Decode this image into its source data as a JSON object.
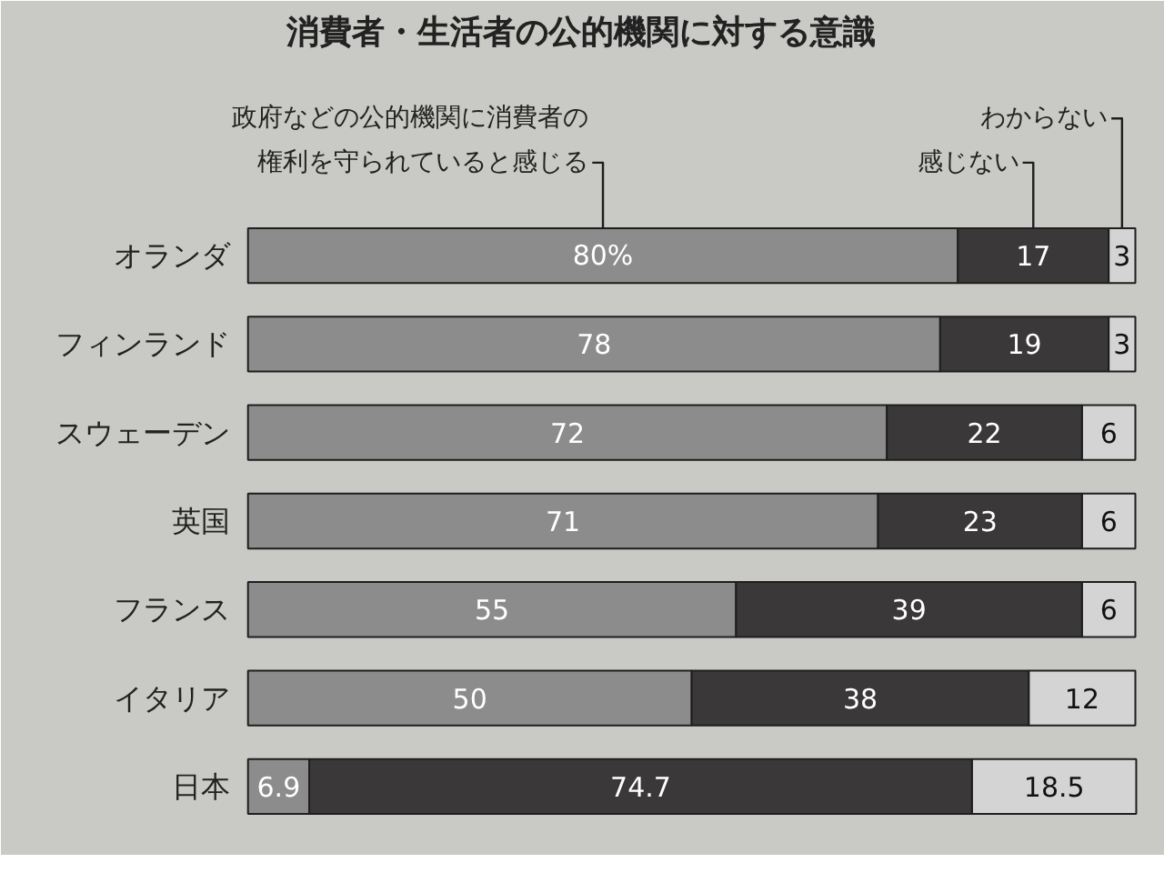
{
  "chart_data": {
    "type": "bar",
    "orientation": "horizontal",
    "stacked": true,
    "title": "消費者・生活者の公的機関に対する意識",
    "categories": [
      "オランダ",
      "フィンランド",
      "スウェーデン",
      "英国",
      "フランス",
      "イタリア",
      "日本"
    ],
    "series": [
      {
        "name": "政府などの公的機関に消費者の権利を守られていると感じる",
        "color": "#8c8c8c",
        "values": [
          80,
          78,
          72,
          71,
          55,
          50,
          6.9
        ],
        "value_labels": [
          "80%",
          "78",
          "72",
          "71",
          "55",
          "50",
          "6.9"
        ]
      },
      {
        "name": "感じない",
        "color": "#3a3838",
        "values": [
          17,
          19,
          22,
          23,
          39,
          38,
          74.7
        ],
        "value_labels": [
          "17",
          "19",
          "22",
          "23",
          "39",
          "38",
          "74.7"
        ]
      },
      {
        "name": "わからない",
        "color": "#d4d4d4",
        "values": [
          3,
          3,
          6,
          6,
          6,
          12,
          18.5
        ],
        "value_labels": [
          "3",
          "3",
          "6",
          "6",
          "6",
          "12",
          "18.5"
        ]
      }
    ]
  }
}
